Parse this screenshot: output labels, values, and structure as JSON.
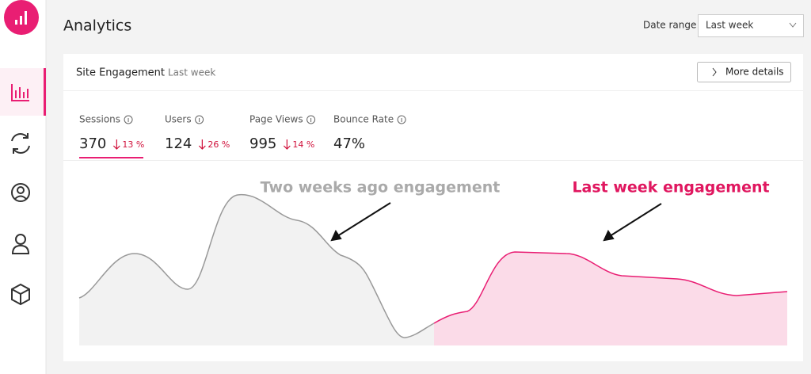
{
  "header": {
    "title": "Analytics",
    "date_range_label": "Date range",
    "date_range_value": "Last week"
  },
  "card": {
    "title": "Site Engagement",
    "subtitle": "Last week",
    "button": "More details",
    "metrics": [
      {
        "label": "Sessions",
        "value": "370",
        "change": "13 %"
      },
      {
        "label": "Users",
        "value": "124",
        "change": "26 %"
      },
      {
        "label": "Page Views",
        "value": "995",
        "change": "14 %"
      },
      {
        "label": "Bounce Rate",
        "value": "47%"
      }
    ],
    "annotations": [
      "Two weeks ago engagement",
      "Last week engagement"
    ]
  }
}
